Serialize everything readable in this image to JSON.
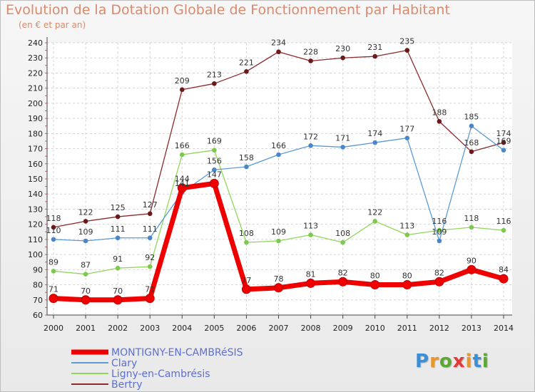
{
  "header": {
    "title": "Evolution de la Dotation Globale de Fonctionnement par Habitant",
    "subtitle": "(en € et par an)"
  },
  "logo": {
    "text": "Proxiti",
    "colors": [
      "#3a8fd8",
      "#e8962e",
      "#5aa832",
      "#e23a3a",
      "#e8962e",
      "#3a8fd8",
      "#5aa832"
    ]
  },
  "chart_data": {
    "type": "line",
    "x": [
      2000,
      2001,
      2002,
      2003,
      2004,
      2005,
      2006,
      2007,
      2008,
      2009,
      2010,
      2011,
      2012,
      2013,
      2014
    ],
    "ylim": [
      60,
      240
    ],
    "yticks": [
      60,
      70,
      80,
      90,
      100,
      110,
      120,
      130,
      140,
      150,
      160,
      170,
      180,
      190,
      200,
      210,
      220,
      230,
      240
    ],
    "grid": true,
    "legend_position": "bottom-left",
    "series": [
      {
        "name": "MONTIGNY-EN-CAMBRéSIS",
        "color": "#ee0000",
        "marker": "#ee0000",
        "values": [
          71,
          70,
          70,
          71,
          144,
          147,
          77,
          78,
          81,
          82,
          80,
          80,
          82,
          90,
          84
        ]
      },
      {
        "name": "Clary",
        "color": "#5b9bd5",
        "marker": "#4a86c8",
        "values": [
          110,
          109,
          111,
          111,
          141,
          156,
          158,
          166,
          172,
          171,
          174,
          177,
          109,
          185,
          169
        ]
      },
      {
        "name": "Ligny-en-Cambrésis",
        "color": "#8fd65a",
        "marker": "#7ec850",
        "values": [
          89,
          87,
          91,
          92,
          166,
          169,
          108,
          109,
          113,
          108,
          122,
          113,
          116,
          118,
          116
        ]
      },
      {
        "name": "Bertry",
        "color": "#8b2a2a",
        "marker": "#6b1a1a",
        "values": [
          118,
          122,
          125,
          127,
          209,
          213,
          221,
          234,
          228,
          230,
          231,
          235,
          188,
          168,
          174
        ]
      }
    ]
  }
}
